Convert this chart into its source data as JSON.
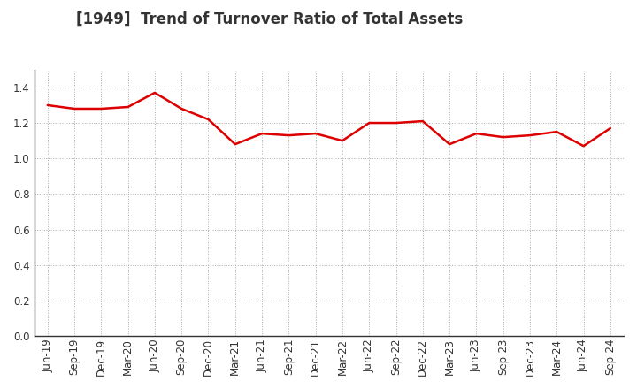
{
  "title": "[1949]  Trend of Turnover Ratio of Total Assets",
  "labels": [
    "Jun-19",
    "Sep-19",
    "Dec-19",
    "Mar-20",
    "Jun-20",
    "Sep-20",
    "Dec-20",
    "Mar-21",
    "Jun-21",
    "Sep-21",
    "Dec-21",
    "Mar-22",
    "Jun-22",
    "Sep-22",
    "Dec-22",
    "Mar-23",
    "Jun-23",
    "Sep-23",
    "Dec-23",
    "Mar-24",
    "Jun-24",
    "Sep-24"
  ],
  "values": [
    1.3,
    1.28,
    1.28,
    1.29,
    1.37,
    1.28,
    1.22,
    1.08,
    1.14,
    1.13,
    1.14,
    1.1,
    1.2,
    1.2,
    1.21,
    1.08,
    1.14,
    1.12,
    1.13,
    1.15,
    1.07,
    1.17
  ],
  "line_color": "#dd0000",
  "line_width": 1.8,
  "ylim": [
    0.0,
    1.5
  ],
  "yticks": [
    0.0,
    0.2,
    0.4,
    0.6,
    0.8,
    1.0,
    1.2,
    1.4
  ],
  "grid_color": "#aaaaaa",
  "background_color": "#ffffff",
  "title_fontsize": 12,
  "title_color": "#333333",
  "tick_fontsize": 8.5,
  "tick_color": "#333333",
  "spine_color": "#333333"
}
